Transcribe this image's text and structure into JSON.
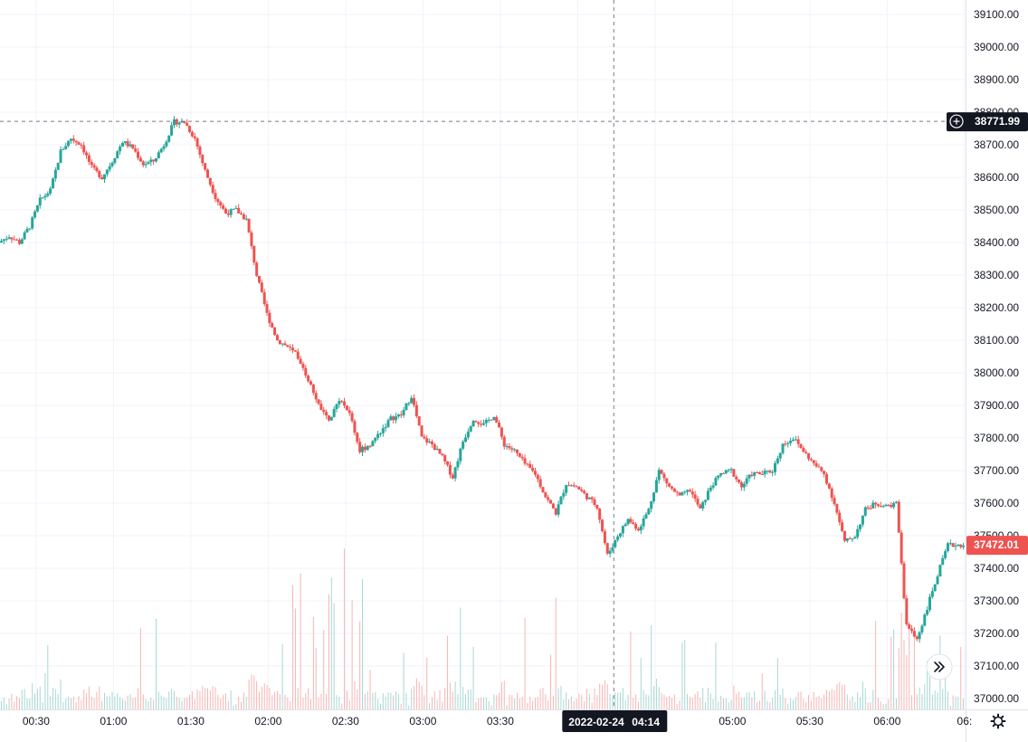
{
  "colors": {
    "up": "#26a69a",
    "down": "#ef5350",
    "grid": "#f0f3fa",
    "axis_text": "#131722",
    "crosshair": "#787b86",
    "label_bg": "#131722",
    "border": "#e0e3eb",
    "up_volume": "#a7d8d2",
    "down_volume": "#f7b5b3"
  },
  "icons": {
    "scroll_right": "double-chevron-right-icon",
    "settings": "gear-icon",
    "crosshair_add": "plus-circle-icon"
  },
  "chart_data": {
    "type": "candlestick",
    "time_axis": {
      "tick_labels": [
        "00:30",
        "01:00",
        "01:30",
        "02:00",
        "02:30",
        "03:00",
        "03:30",
        "05:00",
        "05:30",
        "06:00",
        "06:"
      ],
      "range": [
        "00:16",
        "06:30"
      ]
    },
    "price_axis": {
      "tick_labels": [
        "39100.00",
        "39000.00",
        "38900.00",
        "38800.00",
        "38700.00",
        "38600.00",
        "38500.00",
        "38400.00",
        "38300.00",
        "38200.00",
        "38100.00",
        "38000.00",
        "37900.00",
        "37800.00",
        "37700.00",
        "37600.00",
        "37500.00",
        "37400.00",
        "37300.00",
        "37200.00",
        "37100.00",
        "37000.00"
      ],
      "range": [
        36965,
        39130
      ]
    },
    "crosshair": {
      "price_label": "38771.99",
      "date_label": "2022-02-24",
      "time_label": "04:14"
    },
    "last_price": {
      "label": "37472.01",
      "value": 37472.01
    },
    "close_path": [
      [
        "00:16",
        38400
      ],
      [
        "00:20",
        38420
      ],
      [
        "00:24",
        38400
      ],
      [
        "00:28",
        38450
      ],
      [
        "00:32",
        38530
      ],
      [
        "00:36",
        38560
      ],
      [
        "00:40",
        38680
      ],
      [
        "00:44",
        38720
      ],
      [
        "00:48",
        38700
      ],
      [
        "00:52",
        38630
      ],
      [
        "00:56",
        38600
      ],
      [
        "01:00",
        38650
      ],
      [
        "01:04",
        38710
      ],
      [
        "01:08",
        38690
      ],
      [
        "01:12",
        38640
      ],
      [
        "01:16",
        38650
      ],
      [
        "01:20",
        38700
      ],
      [
        "01:24",
        38770
      ],
      [
        "01:28",
        38770
      ],
      [
        "01:32",
        38720
      ],
      [
        "01:36",
        38620
      ],
      [
        "01:40",
        38540
      ],
      [
        "01:44",
        38490
      ],
      [
        "01:48",
        38500
      ],
      [
        "01:52",
        38470
      ],
      [
        "01:56",
        38300
      ],
      [
        "02:00",
        38180
      ],
      [
        "02:04",
        38100
      ],
      [
        "02:08",
        38080
      ],
      [
        "02:12",
        38050
      ],
      [
        "02:16",
        37980
      ],
      [
        "02:20",
        37900
      ],
      [
        "02:24",
        37850
      ],
      [
        "02:28",
        37920
      ],
      [
        "02:32",
        37880
      ],
      [
        "02:36",
        37760
      ],
      [
        "02:40",
        37780
      ],
      [
        "02:44",
        37820
      ],
      [
        "02:48",
        37860
      ],
      [
        "02:52",
        37870
      ],
      [
        "02:56",
        37930
      ],
      [
        "03:00",
        37800
      ],
      [
        "03:04",
        37780
      ],
      [
        "03:08",
        37740
      ],
      [
        "03:12",
        37680
      ],
      [
        "03:16",
        37790
      ],
      [
        "03:20",
        37860
      ],
      [
        "03:24",
        37840
      ],
      [
        "03:28",
        37870
      ],
      [
        "03:32",
        37780
      ],
      [
        "03:36",
        37760
      ],
      [
        "03:40",
        37720
      ],
      [
        "03:44",
        37690
      ],
      [
        "03:48",
        37620
      ],
      [
        "03:52",
        37570
      ],
      [
        "03:56",
        37660
      ],
      [
        "04:00",
        37650
      ],
      [
        "04:04",
        37620
      ],
      [
        "04:08",
        37590
      ],
      [
        "04:12",
        37440
      ],
      [
        "04:16",
        37500
      ],
      [
        "04:20",
        37550
      ],
      [
        "04:24",
        37520
      ],
      [
        "04:28",
        37580
      ],
      [
        "04:32",
        37700
      ],
      [
        "04:36",
        37650
      ],
      [
        "04:40",
        37620
      ],
      [
        "04:44",
        37640
      ],
      [
        "04:48",
        37580
      ],
      [
        "04:52",
        37650
      ],
      [
        "04:56",
        37690
      ],
      [
        "05:00",
        37700
      ],
      [
        "05:04",
        37650
      ],
      [
        "05:08",
        37690
      ],
      [
        "05:12",
        37690
      ],
      [
        "05:16",
        37700
      ],
      [
        "05:20",
        37780
      ],
      [
        "05:24",
        37800
      ],
      [
        "05:28",
        37760
      ],
      [
        "05:32",
        37720
      ],
      [
        "05:36",
        37690
      ],
      [
        "05:40",
        37600
      ],
      [
        "05:44",
        37480
      ],
      [
        "05:48",
        37500
      ],
      [
        "05:52",
        37580
      ],
      [
        "05:56",
        37600
      ],
      [
        "06:00",
        37590
      ],
      [
        "06:04",
        37600
      ],
      [
        "06:08",
        37220
      ],
      [
        "06:12",
        37180
      ],
      [
        "06:16",
        37280
      ],
      [
        "06:20",
        37380
      ],
      [
        "06:24",
        37470
      ],
      [
        "06:28",
        37472
      ]
    ],
    "volume": {
      "baseline": "bottom",
      "max_relative": 1.0
    },
    "grid": true,
    "legend": "none"
  }
}
